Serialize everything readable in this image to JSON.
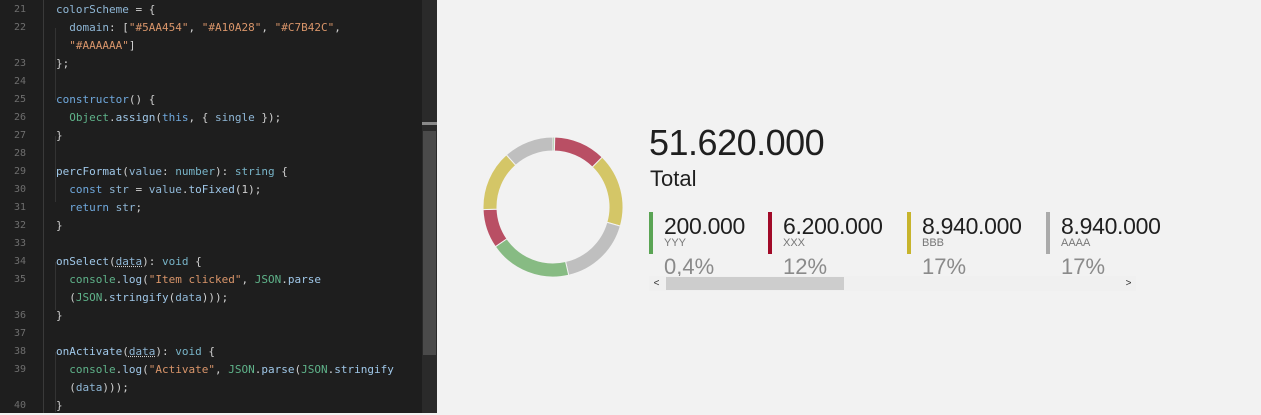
{
  "editor": {
    "lines": [
      {
        "n": "21",
        "html": "<span class=\"p\">colorScheme</span> = {"
      },
      {
        "n": "22",
        "html": "  <span class=\"p\">domain</span>: [<span class=\"s\">\"#5AA454\"</span>, <span class=\"s\">\"#A10A28\"</span>, <span class=\"s\">\"#C7B42C\"</span>,"
      },
      {
        "n": "",
        "html": "  <span class=\"s\">\"#AAAAAA\"</span>]"
      },
      {
        "n": "23",
        "html": "};"
      },
      {
        "n": "24",
        "html": ""
      },
      {
        "n": "25",
        "html": "<span class=\"k\">constructor</span>() {"
      },
      {
        "n": "26",
        "html": "  <span class=\"g\">Object</span>.<span class=\"f\">assign</span>(<span class=\"k\">this</span>, { <span class=\"p\">single</span> });"
      },
      {
        "n": "27",
        "html": "}"
      },
      {
        "n": "28",
        "html": ""
      },
      {
        "n": "29",
        "html": "<span class=\"f\">percFormat</span>(<span class=\"p\">value</span>: <span class=\"t\">number</span>): <span class=\"t\">string</span> {"
      },
      {
        "n": "30",
        "html": "  <span class=\"k\">const</span> <span class=\"p\">str</span> = <span class=\"p\">value</span>.<span class=\"f\">toFixed</span>(1);"
      },
      {
        "n": "31",
        "html": "  <span class=\"k\">return</span> <span class=\"p\">str</span>;"
      },
      {
        "n": "32",
        "html": "}"
      },
      {
        "n": "33",
        "html": ""
      },
      {
        "n": "34",
        "html": "<span class=\"f\">onSelect</span>(<span class=\"p sq\">data</span>): <span class=\"t\">void</span> {"
      },
      {
        "n": "35",
        "html": "  <span class=\"g\">console</span>.<span class=\"f\">log</span>(<span class=\"s\">\"Item clicked\"</span>, <span class=\"g\">JSON</span>.<span class=\"f\">parse</span>"
      },
      {
        "n": "",
        "html": "  (<span class=\"g\">JSON</span>.<span class=\"f\">stringify</span>(<span class=\"p\">data</span>)));"
      },
      {
        "n": "36",
        "html": "}"
      },
      {
        "n": "37",
        "html": ""
      },
      {
        "n": "38",
        "html": "<span class=\"f\">onActivate</span>(<span class=\"p sq\">data</span>): <span class=\"t\">void</span> {"
      },
      {
        "n": "39",
        "html": "  <span class=\"g\">console</span>.<span class=\"f\">log</span>(<span class=\"s\">\"Activate\"</span>, <span class=\"g\">JSON</span>.<span class=\"f\">parse</span>(<span class=\"g\">JSON</span>.<span class=\"f\">stringify</span>"
      },
      {
        "n": "",
        "html": "  (<span class=\"p\">data</span>)));"
      },
      {
        "n": "40",
        "html": "}"
      }
    ]
  },
  "card": {
    "total_value": "51.620.000",
    "total_label": "Total",
    "scroll_left_glyph": "<",
    "scroll_right_glyph": ">"
  },
  "legend": [
    {
      "value": "200.000",
      "name": "YYY",
      "percent": "0,4%",
      "color": "#5AA454"
    },
    {
      "value": "6.200.000",
      "name": "XXX",
      "percent": "12%",
      "color": "#A10A28"
    },
    {
      "value": "8.940.000",
      "name": "BBB",
      "percent": "17%",
      "color": "#C7B42C"
    },
    {
      "value": "8.940.000",
      "name": "AAAA",
      "percent": "17%",
      "color": "#AAAAAA"
    }
  ],
  "donut": {
    "segments": [
      {
        "value": 0.4,
        "color": "#5AA454"
      },
      {
        "value": 12,
        "color": "#A10A28"
      },
      {
        "value": 17,
        "color": "#C7B42C"
      },
      {
        "value": 17,
        "color": "#AAAAAA"
      },
      {
        "value": 19,
        "color": "#5AA454"
      },
      {
        "value": 9,
        "color": "#A10A28"
      },
      {
        "value": 14,
        "color": "#C7B42C"
      },
      {
        "value": 11.6,
        "color": "#AAAAAA"
      }
    ],
    "opacity": 0.7
  }
}
